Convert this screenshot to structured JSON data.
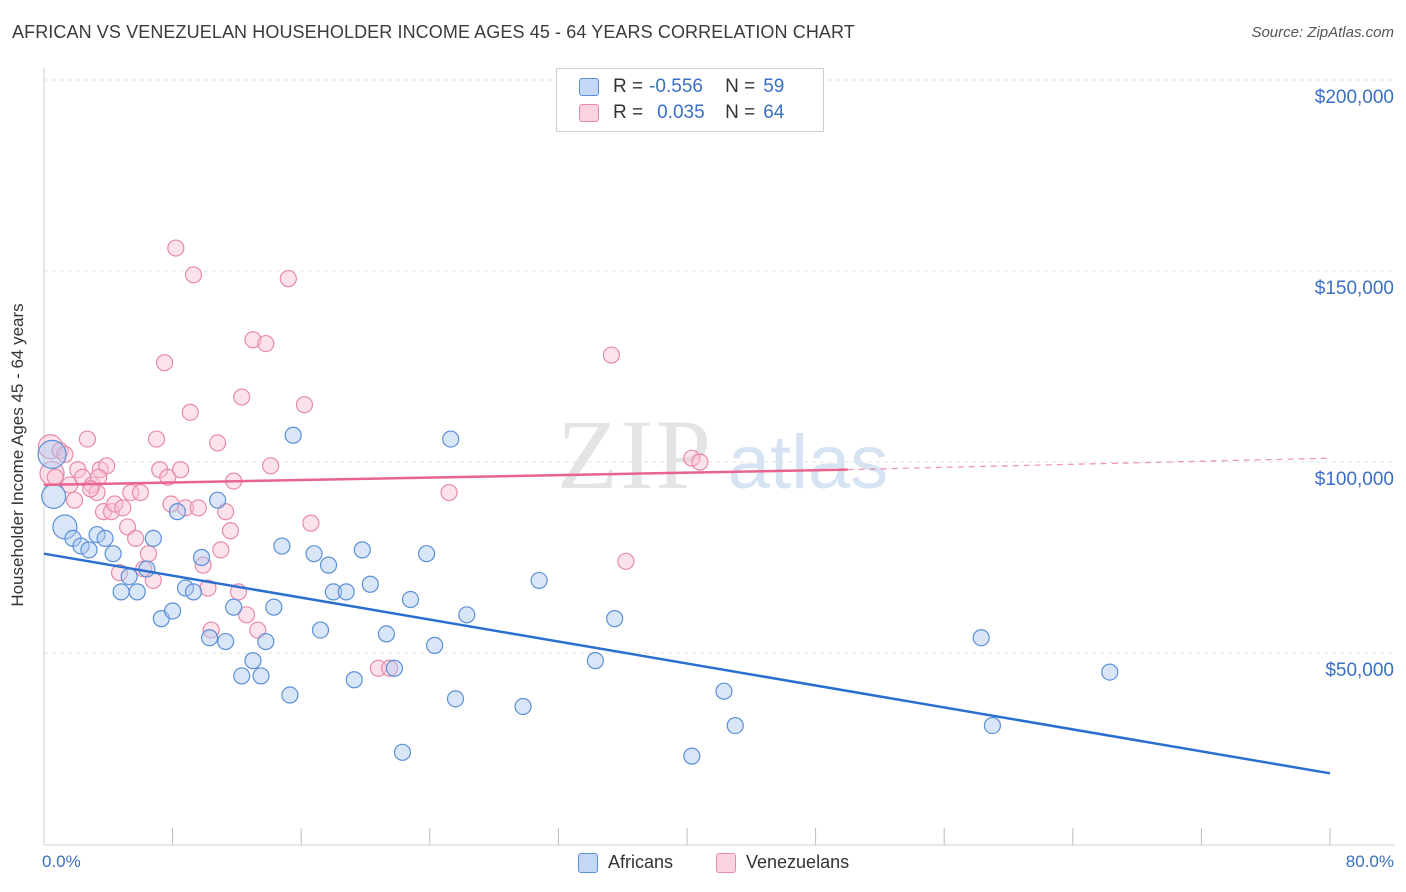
{
  "title": "AFRICAN VS VENEZUELAN HOUSEHOLDER INCOME AGES 45 - 64 YEARS CORRELATION CHART",
  "source": "Source: ZipAtlas.com",
  "watermark": {
    "zip": "ZIP",
    "atlas": "atlas"
  },
  "legend": {
    "rows": [
      {
        "r_label": "R =",
        "r_value": "-0.556",
        "n_label": "N =",
        "n_value": "59"
      },
      {
        "r_label": "R =",
        "r_value": "0.035",
        "n_label": "N =",
        "n_value": "64"
      }
    ]
  },
  "bottom_legend": {
    "africans": "Africans",
    "venezuelans": "Venezuelans"
  },
  "axis": {
    "x_min_label": "0.0%",
    "x_max_label": "80.0%",
    "y_label": "Householder Income Ages 45 - 64 years",
    "y_ticks": [
      "$200,000",
      "$150,000",
      "$100,000",
      "$50,000"
    ]
  },
  "colors": {
    "african_fill": "#aac8f0",
    "african_stroke": "#5b8fd6",
    "african_line": "#2a6fd0",
    "venezuelan_fill": "#f8c0d2",
    "venezuelan_stroke": "#e88aa8",
    "venezuelan_line": "#e8648e",
    "tick_text": "#3a6fc4",
    "grid": "#e3e3e3"
  },
  "chart_data": {
    "type": "scatter",
    "title": "AFRICAN VS VENEZUELAN HOUSEHOLDER INCOME AGES 45 - 64 YEARS CORRELATION CHART",
    "xlabel": "",
    "ylabel": "Householder Income Ages 45 - 64 years",
    "xlim": [
      0,
      80
    ],
    "ylim": [
      5000,
      205000
    ],
    "grid": true,
    "legend_position": "top-center",
    "series": [
      {
        "name": "Africans",
        "r": -0.556,
        "n": 59,
        "trend": {
          "x0": 0,
          "y0": 76000,
          "x1": 80,
          "y1": 18500
        },
        "points": [
          [
            0.5,
            102000,
            14
          ],
          [
            0.6,
            91000,
            12
          ],
          [
            1.3,
            83000,
            12
          ],
          [
            1.8,
            80000,
            8
          ],
          [
            2.3,
            78000,
            8
          ],
          [
            2.8,
            77000,
            8
          ],
          [
            3.3,
            81000,
            8
          ],
          [
            3.8,
            80000,
            8
          ],
          [
            4.3,
            76000,
            8
          ],
          [
            4.8,
            66000,
            8
          ],
          [
            5.3,
            70000,
            8
          ],
          [
            5.8,
            66000,
            8
          ],
          [
            6.4,
            72000,
            8
          ],
          [
            6.8,
            80000,
            8
          ],
          [
            7.3,
            59000,
            8
          ],
          [
            8.0,
            61000,
            8
          ],
          [
            8.3,
            87000,
            8
          ],
          [
            8.8,
            67000,
            8
          ],
          [
            9.3,
            66000,
            8
          ],
          [
            9.8,
            75000,
            8
          ],
          [
            10.3,
            54000,
            8
          ],
          [
            10.8,
            90000,
            8
          ],
          [
            11.3,
            53000,
            8
          ],
          [
            11.8,
            62000,
            8
          ],
          [
            12.3,
            44000,
            8
          ],
          [
            13.0,
            48000,
            8
          ],
          [
            13.5,
            44000,
            8
          ],
          [
            13.8,
            53000,
            8
          ],
          [
            14.3,
            62000,
            8
          ],
          [
            14.8,
            78000,
            8
          ],
          [
            15.3,
            39000,
            8
          ],
          [
            15.5,
            107000,
            8
          ],
          [
            16.8,
            76000,
            8
          ],
          [
            17.2,
            56000,
            8
          ],
          [
            17.7,
            73000,
            8
          ],
          [
            18.0,
            66000,
            8
          ],
          [
            18.8,
            66000,
            8
          ],
          [
            19.3,
            43000,
            8
          ],
          [
            19.8,
            77000,
            8
          ],
          [
            20.3,
            68000,
            8
          ],
          [
            21.3,
            55000,
            8
          ],
          [
            21.8,
            46000,
            8
          ],
          [
            22.3,
            24000,
            8
          ],
          [
            22.8,
            64000,
            8
          ],
          [
            23.8,
            76000,
            8
          ],
          [
            24.3,
            52000,
            8
          ],
          [
            25.3,
            106000,
            8
          ],
          [
            25.6,
            38000,
            8
          ],
          [
            26.3,
            60000,
            8
          ],
          [
            29.8,
            36000,
            8
          ],
          [
            30.8,
            69000,
            8
          ],
          [
            34.3,
            48000,
            8
          ],
          [
            35.5,
            59000,
            8
          ],
          [
            40.3,
            23000,
            8
          ],
          [
            42.3,
            40000,
            8
          ],
          [
            43.0,
            31000,
            8
          ],
          [
            58.3,
            54000,
            8
          ],
          [
            59.0,
            31000,
            8
          ],
          [
            66.3,
            45000,
            8
          ]
        ]
      },
      {
        "name": "Venezuelans",
        "r": 0.035,
        "n": 64,
        "trend": {
          "x0": 0,
          "y0": 94000,
          "x1": 50,
          "y1": 98000,
          "dash_x1": 80,
          "dash_y1": 101000
        },
        "points": [
          [
            0.4,
            104000,
            12
          ],
          [
            0.5,
            97000,
            12
          ],
          [
            0.7,
            96000,
            8
          ],
          [
            1.0,
            103000,
            8
          ],
          [
            1.3,
            102000,
            8
          ],
          [
            1.6,
            94000,
            8
          ],
          [
            1.9,
            90000,
            8
          ],
          [
            2.1,
            98000,
            8
          ],
          [
            2.4,
            96000,
            8
          ],
          [
            2.7,
            106000,
            8
          ],
          [
            3.0,
            94000,
            8
          ],
          [
            3.3,
            92000,
            8
          ],
          [
            3.5,
            98000,
            8
          ],
          [
            3.7,
            87000,
            8
          ],
          [
            3.9,
            99000,
            8
          ],
          [
            4.2,
            87000,
            8
          ],
          [
            4.4,
            89000,
            8
          ],
          [
            4.7,
            71000,
            8
          ],
          [
            4.9,
            88000,
            8
          ],
          [
            5.2,
            83000,
            8
          ],
          [
            5.4,
            92000,
            8
          ],
          [
            5.7,
            80000,
            8
          ],
          [
            6.0,
            92000,
            8
          ],
          [
            6.2,
            72000,
            8
          ],
          [
            6.5,
            76000,
            8
          ],
          [
            6.8,
            69000,
            8
          ],
          [
            7.0,
            106000,
            8
          ],
          [
            7.2,
            98000,
            8
          ],
          [
            7.5,
            126000,
            8
          ],
          [
            7.7,
            96000,
            8
          ],
          [
            7.9,
            89000,
            8
          ],
          [
            8.2,
            156000,
            8
          ],
          [
            8.5,
            98000,
            8
          ],
          [
            8.8,
            88000,
            8
          ],
          [
            9.1,
            113000,
            8
          ],
          [
            9.3,
            149000,
            8
          ],
          [
            9.6,
            88000,
            8
          ],
          [
            9.9,
            73000,
            8
          ],
          [
            10.2,
            67000,
            8
          ],
          [
            10.4,
            56000,
            8
          ],
          [
            10.8,
            105000,
            8
          ],
          [
            11.0,
            77000,
            8
          ],
          [
            11.3,
            87000,
            8
          ],
          [
            11.6,
            82000,
            8
          ],
          [
            11.8,
            95000,
            8
          ],
          [
            12.1,
            66000,
            8
          ],
          [
            12.3,
            117000,
            8
          ],
          [
            12.6,
            60000,
            8
          ],
          [
            13.0,
            132000,
            8
          ],
          [
            13.3,
            56000,
            8
          ],
          [
            13.8,
            131000,
            8
          ],
          [
            14.1,
            99000,
            8
          ],
          [
            15.2,
            148000,
            8
          ],
          [
            16.2,
            115000,
            8
          ],
          [
            16.6,
            84000,
            8
          ],
          [
            20.8,
            46000,
            8
          ],
          [
            21.5,
            46000,
            8
          ],
          [
            25.2,
            92000,
            8
          ],
          [
            35.3,
            128000,
            8
          ],
          [
            36.2,
            74000,
            8
          ],
          [
            40.3,
            101000,
            8
          ],
          [
            40.8,
            100000,
            8
          ],
          [
            3.4,
            96000,
            8
          ],
          [
            2.9,
            93000,
            8
          ]
        ]
      }
    ]
  }
}
